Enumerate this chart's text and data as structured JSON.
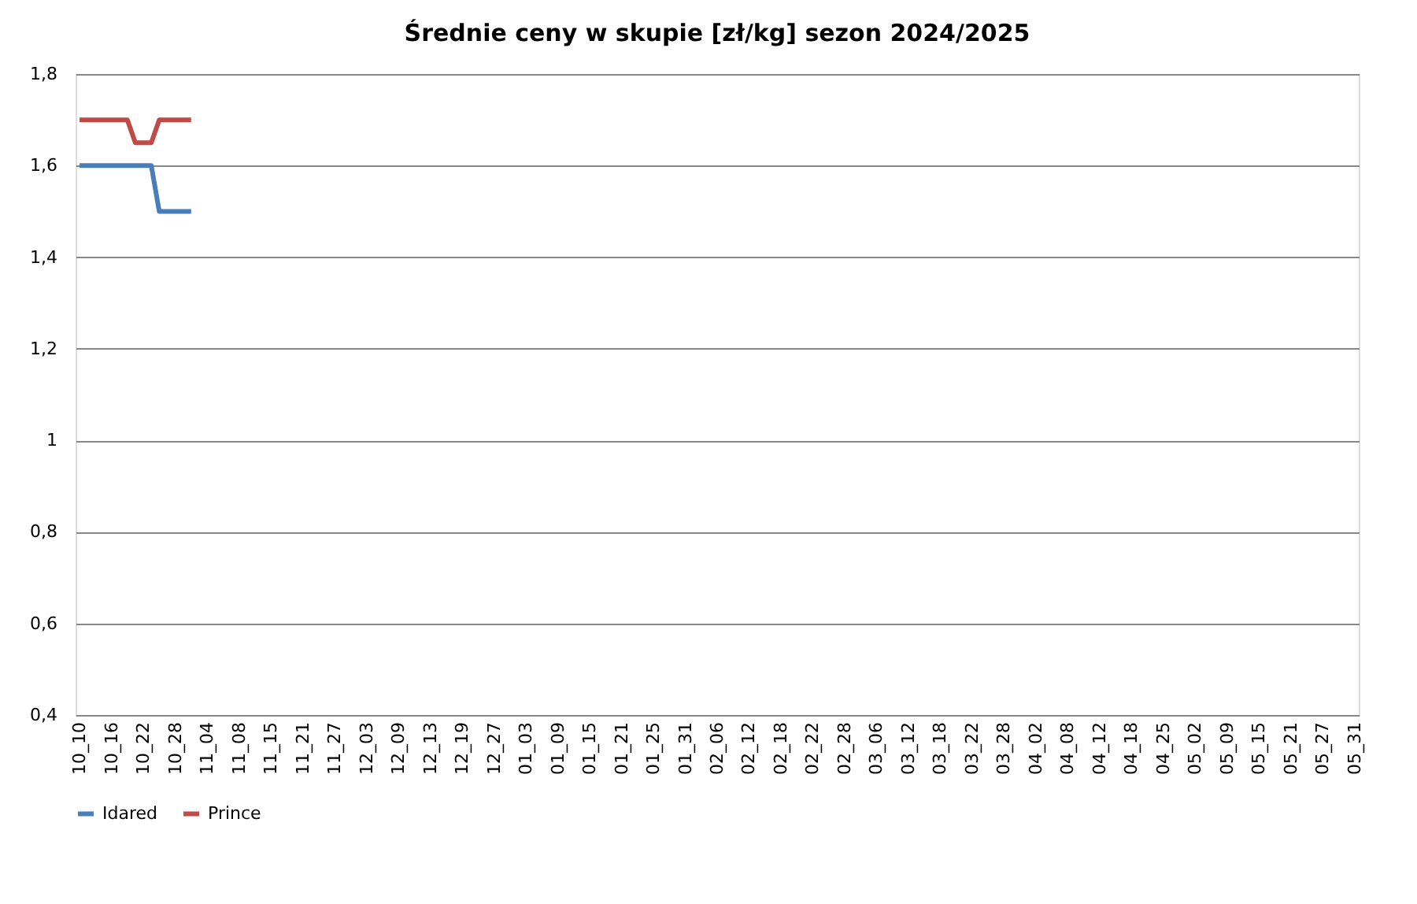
{
  "chart_data": {
    "type": "line",
    "title": "Średnie ceny w skupie [zł/kg] sezon 2024/2025",
    "categories": [
      "10_10",
      null,
      null,
      null,
      "10_16",
      null,
      null,
      null,
      "10_22",
      null,
      null,
      null,
      "10_28",
      null,
      null,
      null,
      "11_04",
      null,
      null,
      null,
      "11_08",
      null,
      null,
      null,
      "11_15",
      null,
      null,
      null,
      "11_21",
      null,
      null,
      null,
      "11_27",
      null,
      null,
      null,
      "12_03",
      null,
      null,
      null,
      "12_09",
      null,
      null,
      null,
      "12_13",
      null,
      null,
      null,
      "12_19",
      null,
      null,
      null,
      "12_27",
      null,
      null,
      null,
      "01_03",
      null,
      null,
      null,
      "01_09",
      null,
      null,
      null,
      "01_15",
      null,
      null,
      null,
      "01_21",
      null,
      null,
      null,
      "01_25",
      null,
      null,
      null,
      "01_31",
      null,
      null,
      null,
      "02_06",
      null,
      null,
      null,
      "02_12",
      null,
      null,
      null,
      "02_18",
      null,
      null,
      null,
      "02_22",
      null,
      null,
      null,
      "02_28",
      null,
      null,
      null,
      "03_06",
      null,
      null,
      null,
      "03_12",
      null,
      null,
      null,
      "03_18",
      null,
      null,
      null,
      "03_22",
      null,
      null,
      null,
      "03_28",
      null,
      null,
      null,
      "04_02",
      null,
      null,
      null,
      "04_08",
      null,
      null,
      null,
      "04_12",
      null,
      null,
      null,
      "04_18",
      null,
      null,
      null,
      "04_25",
      null,
      null,
      null,
      "05_02",
      null,
      null,
      null,
      "05_09",
      null,
      null,
      null,
      "05_15",
      null,
      null,
      null,
      "05_21",
      null,
      null,
      null,
      "05_27",
      null,
      null,
      null,
      "05_31"
    ],
    "series": [
      {
        "name": "Idared",
        "color": "#4a7ebb",
        "values": [
          1.6,
          1.6,
          1.6,
          1.6,
          1.6,
          1.6,
          1.6,
          1.6,
          1.6,
          1.6,
          1.5,
          1.5,
          1.5,
          1.5,
          1.5,
          null,
          null,
          null,
          null,
          null,
          null,
          null,
          null,
          null,
          null,
          null,
          null,
          null,
          null,
          null,
          null,
          null,
          null,
          null,
          null,
          null,
          null,
          null,
          null,
          null,
          null,
          null,
          null,
          null,
          null,
          null,
          null,
          null,
          null,
          null,
          null,
          null,
          null,
          null,
          null,
          null,
          null,
          null,
          null,
          null,
          null,
          null,
          null,
          null,
          null,
          null,
          null,
          null,
          null,
          null,
          null,
          null,
          null,
          null,
          null,
          null,
          null,
          null,
          null,
          null,
          null,
          null,
          null,
          null,
          null,
          null,
          null,
          null,
          null,
          null,
          null,
          null,
          null,
          null,
          null,
          null,
          null,
          null,
          null,
          null,
          null,
          null,
          null,
          null,
          null,
          null,
          null,
          null,
          null,
          null,
          null,
          null,
          null,
          null,
          null,
          null,
          null,
          null,
          null,
          null,
          null,
          null,
          null,
          null,
          null,
          null,
          null,
          null,
          null,
          null,
          null,
          null,
          null,
          null,
          null,
          null,
          null,
          null,
          null,
          null,
          null,
          null,
          null,
          null,
          null,
          null,
          null,
          null,
          null,
          null,
          null,
          null,
          null,
          null,
          null,
          null,
          null,
          null,
          null,
          null,
          null
        ]
      },
      {
        "name": "Prince",
        "color": "#be4b48",
        "values": [
          1.7,
          1.7,
          1.7,
          1.7,
          1.7,
          1.7,
          1.7,
          1.65,
          1.65,
          1.65,
          1.7,
          1.7,
          1.7,
          1.7,
          1.7,
          null,
          null,
          null,
          null,
          null,
          null,
          null,
          null,
          null,
          null,
          null,
          null,
          null,
          null,
          null,
          null,
          null,
          null,
          null,
          null,
          null,
          null,
          null,
          null,
          null,
          null,
          null,
          null,
          null,
          null,
          null,
          null,
          null,
          null,
          null,
          null,
          null,
          null,
          null,
          null,
          null,
          null,
          null,
          null,
          null,
          null,
          null,
          null,
          null,
          null,
          null,
          null,
          null,
          null,
          null,
          null,
          null,
          null,
          null,
          null,
          null,
          null,
          null,
          null,
          null,
          null,
          null,
          null,
          null,
          null,
          null,
          null,
          null,
          null,
          null,
          null,
          null,
          null,
          null,
          null,
          null,
          null,
          null,
          null,
          null,
          null,
          null,
          null,
          null,
          null,
          null,
          null,
          null,
          null,
          null,
          null,
          null,
          null,
          null,
          null,
          null,
          null,
          null,
          null,
          null,
          null,
          null,
          null,
          null,
          null,
          null,
          null,
          null,
          null,
          null,
          null,
          null,
          null,
          null,
          null,
          null,
          null,
          null,
          null,
          null,
          null,
          null,
          null,
          null,
          null,
          null,
          null,
          null,
          null,
          null,
          null,
          null,
          null,
          null,
          null,
          null,
          null,
          null,
          null,
          null,
          null
        ]
      }
    ],
    "ylim": [
      0.4,
      1.8
    ],
    "yticks": [
      {
        "value": 0.4,
        "label": "0,4"
      },
      {
        "value": 0.6,
        "label": "0,6"
      },
      {
        "value": 0.8,
        "label": "0,8"
      },
      1,
      {
        "value": 1.2,
        "label": "1,2"
      },
      {
        "value": 1.4,
        "label": "1,4"
      },
      {
        "value": 1.6,
        "label": "1,6"
      },
      {
        "value": 1.8,
        "label": "1,8"
      }
    ],
    "grid": "y",
    "legend": "bottom",
    "marker": "none",
    "line_style": "solid"
  }
}
